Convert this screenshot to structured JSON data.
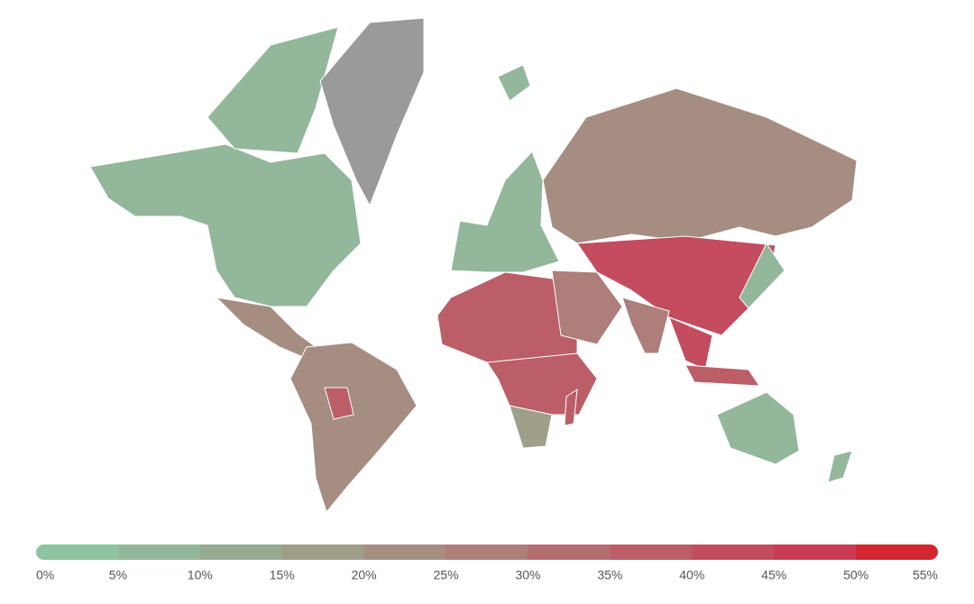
{
  "chart_data": {
    "type": "choropleth",
    "values": [
      7,
      6,
      null,
      20,
      21,
      38,
      6,
      6,
      22,
      38,
      35,
      18,
      25,
      40,
      28,
      42,
      38,
      5,
      5,
      5,
      38
    ],
    "colors": [
      "#8fc4a3",
      "#93b79a",
      "#98ab92",
      "#9e9e89",
      "#a68d82",
      "#ad7e7a",
      "#b46d71",
      "#bb5e68",
      "#c34c5e",
      "#ca3c55",
      "#d1282f"
    ],
    "no_data_color": "#9a9a9a",
    "ticks": [
      {
        "value": 0,
        "label": "0%"
      },
      {
        "value": 5,
        "label": "5%"
      },
      {
        "value": 10,
        "label": "10%"
      },
      {
        "value": 15,
        "label": "15%"
      },
      {
        "value": 20,
        "label": "20%"
      },
      {
        "value": 25,
        "label": "25%"
      },
      {
        "value": 30,
        "label": "30%"
      },
      {
        "value": 35,
        "label": "35%"
      },
      {
        "value": 40,
        "label": "40%"
      },
      {
        "value": 45,
        "label": "45%"
      },
      {
        "value": 50,
        "label": "50%"
      },
      {
        "value": 55,
        "label": "55%"
      }
    ]
  }
}
